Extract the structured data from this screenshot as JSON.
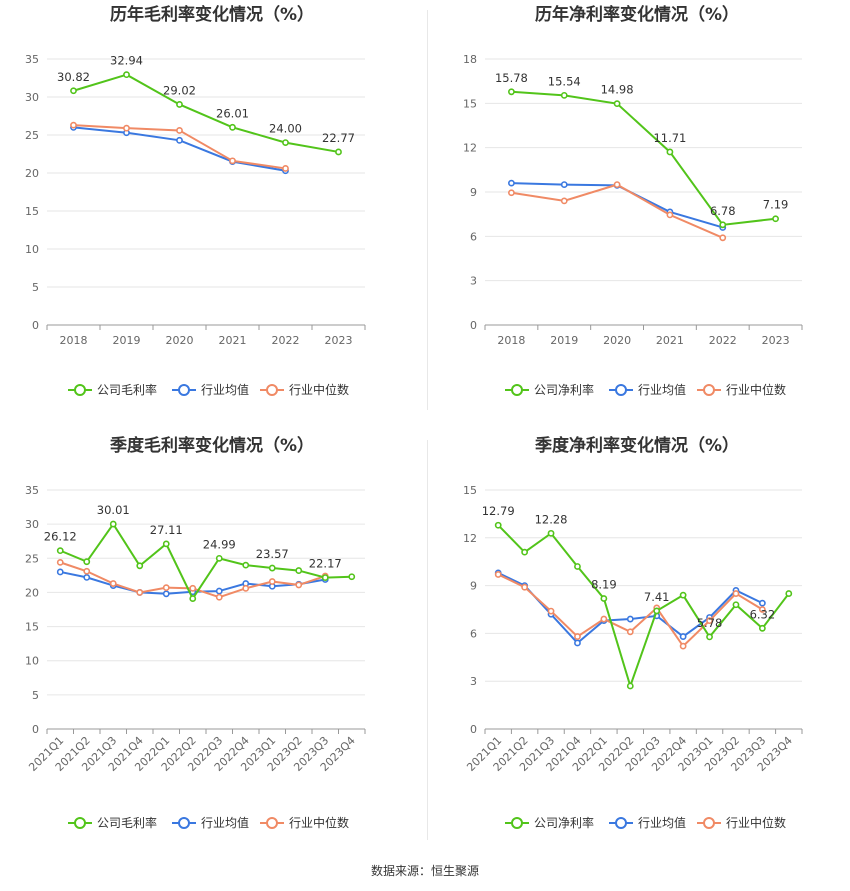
{
  "source_label": "数据来源：恒生聚源",
  "colors": {
    "company": "#52c41a",
    "avg": "#3a78e0",
    "median": "#f08a65",
    "grid": "#e6e6e6",
    "axis": "#666666"
  },
  "chart_data": [
    {
      "type": "line",
      "title": "历年毛利率变化情况（%）",
      "categories": [
        "2018",
        "2019",
        "2020",
        "2021",
        "2022",
        "2023"
      ],
      "ylim": [
        0,
        35
      ],
      "yticks": [
        0,
        5,
        10,
        15,
        20,
        25,
        30,
        35
      ],
      "grid": true,
      "legend_position": "bottom",
      "rotate_x": false,
      "series": [
        {
          "name": "公司毛利率",
          "key": "company",
          "values": [
            30.82,
            32.94,
            29.02,
            26.01,
            24.0,
            22.77
          ],
          "labels": [
            "30.82",
            "32.94",
            "29.02",
            "26.01",
            "24.00",
            "22.77"
          ]
        },
        {
          "name": "行业均值",
          "key": "avg",
          "values": [
            26.0,
            25.3,
            24.3,
            21.5,
            20.3,
            null
          ]
        },
        {
          "name": "行业中位数",
          "key": "median",
          "values": [
            26.3,
            25.9,
            25.6,
            21.6,
            20.6,
            null
          ]
        }
      ]
    },
    {
      "type": "line",
      "title": "历年净利率变化情况（%）",
      "categories": [
        "2018",
        "2019",
        "2020",
        "2021",
        "2022",
        "2023"
      ],
      "ylim": [
        0,
        18
      ],
      "yticks": [
        0,
        3,
        6,
        9,
        12,
        15,
        18
      ],
      "grid": true,
      "legend_position": "bottom",
      "rotate_x": false,
      "series": [
        {
          "name": "公司净利率",
          "key": "company",
          "values": [
            15.78,
            15.54,
            14.98,
            11.71,
            6.78,
            7.19
          ],
          "labels": [
            "15.78",
            "15.54",
            "14.98",
            "11.71",
            "6.78",
            "7.19"
          ]
        },
        {
          "name": "行业均值",
          "key": "avg",
          "values": [
            9.6,
            9.5,
            9.45,
            7.65,
            6.6,
            null
          ]
        },
        {
          "name": "行业中位数",
          "key": "median",
          "values": [
            8.95,
            8.4,
            9.5,
            7.45,
            5.9,
            null
          ]
        }
      ]
    },
    {
      "type": "line",
      "title": "季度毛利率变化情况（%）",
      "categories": [
        "2021Q1",
        "2021Q2",
        "2021Q3",
        "2021Q4",
        "2022Q1",
        "2022Q2",
        "2022Q3",
        "2022Q4",
        "2023Q1",
        "2023Q2",
        "2023Q3",
        "2023Q4"
      ],
      "ylim": [
        0,
        35
      ],
      "yticks": [
        0,
        5,
        10,
        15,
        20,
        25,
        30,
        35
      ],
      "grid": true,
      "legend_position": "bottom",
      "rotate_x": true,
      "series": [
        {
          "name": "公司毛利率",
          "key": "company",
          "values": [
            26.12,
            24.5,
            30.01,
            23.9,
            27.11,
            19.1,
            24.99,
            24.0,
            23.57,
            23.2,
            22.17,
            22.3
          ],
          "labels": [
            "26.12",
            "",
            "30.01",
            "",
            "27.11",
            "",
            "24.99",
            "",
            "23.57",
            "",
            "22.17",
            ""
          ]
        },
        {
          "name": "行业均值",
          "key": "avg",
          "values": [
            23.0,
            22.2,
            21.0,
            20.0,
            19.8,
            20.1,
            20.2,
            21.3,
            20.9,
            21.2,
            21.9,
            null
          ]
        },
        {
          "name": "行业中位数",
          "key": "median",
          "values": [
            24.4,
            23.1,
            21.3,
            20.0,
            20.7,
            20.6,
            19.3,
            20.6,
            21.6,
            21.1,
            22.4,
            null
          ]
        }
      ]
    },
    {
      "type": "line",
      "title": "季度净利率变化情况（%）",
      "categories": [
        "2021Q1",
        "2021Q2",
        "2021Q3",
        "2021Q4",
        "2022Q1",
        "2022Q2",
        "2022Q3",
        "2022Q4",
        "2023Q1",
        "2023Q2",
        "2023Q3",
        "2023Q4"
      ],
      "ylim": [
        0,
        15
      ],
      "yticks": [
        0,
        3,
        6,
        9,
        12,
        15
      ],
      "grid": true,
      "legend_position": "bottom",
      "rotate_x": true,
      "series": [
        {
          "name": "公司净利率",
          "key": "company",
          "values": [
            12.79,
            11.1,
            12.28,
            10.2,
            8.19,
            2.7,
            7.41,
            8.4,
            5.78,
            7.8,
            6.32,
            8.5
          ],
          "labels": [
            "12.79",
            "",
            "12.28",
            "",
            "8.19",
            "",
            "7.41",
            "",
            "5.78",
            "",
            "6.32",
            ""
          ]
        },
        {
          "name": "行业均值",
          "key": "avg",
          "values": [
            9.8,
            9.0,
            7.2,
            5.4,
            6.8,
            6.9,
            7.1,
            5.8,
            7.0,
            8.7,
            7.9,
            null
          ]
        },
        {
          "name": "行业中位数",
          "key": "median",
          "values": [
            9.7,
            8.9,
            7.4,
            5.8,
            6.9,
            6.1,
            7.6,
            5.2,
            6.8,
            8.5,
            7.5,
            null
          ]
        }
      ]
    }
  ]
}
